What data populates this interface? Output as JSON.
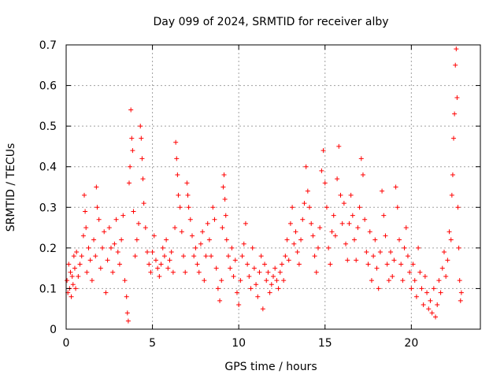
{
  "chart_data": {
    "type": "scatter",
    "title": "Day 099 of 2024, SRMTID for receiver alby",
    "xlabel": "GPS time / hours",
    "ylabel": "SRMTID / TECUs",
    "xlim": [
      0,
      24
    ],
    "ylim": [
      0,
      0.7
    ],
    "xticks": [
      0,
      5,
      10,
      15,
      20
    ],
    "xtick_labels": [
      "0",
      "5",
      "10",
      "15",
      "20"
    ],
    "yticks": [
      0,
      0.1,
      0.2,
      0.3,
      0.4,
      0.5,
      0.6,
      0.7
    ],
    "ytick_labels": [
      "0",
      "0.1",
      "0.2",
      "0.3",
      "0.4",
      "0.5",
      "0.6",
      "0.7"
    ],
    "grid": true,
    "marker": "+",
    "marker_color": "#ff0000",
    "series": [
      {
        "name": "SRMTID",
        "points": [
          [
            0.05,
            0.12
          ],
          [
            0.1,
            0.09
          ],
          [
            0.15,
            0.16
          ],
          [
            0.2,
            0.1
          ],
          [
            0.25,
            0.14
          ],
          [
            0.3,
            0.08
          ],
          [
            0.35,
            0.13
          ],
          [
            0.4,
            0.11
          ],
          [
            0.45,
            0.18
          ],
          [
            0.5,
            0.15
          ],
          [
            0.55,
            0.1
          ],
          [
            0.6,
            0.19
          ],
          [
            0.7,
            0.13
          ],
          [
            0.8,
            0.16
          ],
          [
            0.9,
            0.18
          ],
          [
            1.0,
            0.23
          ],
          [
            1.05,
            0.33
          ],
          [
            1.1,
            0.29
          ],
          [
            1.15,
            0.25
          ],
          [
            1.2,
            0.14
          ],
          [
            1.3,
            0.2
          ],
          [
            1.4,
            0.17
          ],
          [
            1.5,
            0.12
          ],
          [
            1.6,
            0.22
          ],
          [
            1.7,
            0.18
          ],
          [
            1.75,
            0.35
          ],
          [
            1.8,
            0.3
          ],
          [
            1.9,
            0.27
          ],
          [
            2.0,
            0.15
          ],
          [
            2.1,
            0.2
          ],
          [
            2.2,
            0.24
          ],
          [
            2.3,
            0.09
          ],
          [
            2.4,
            0.17
          ],
          [
            2.5,
            0.25
          ],
          [
            2.6,
            0.2
          ],
          [
            2.7,
            0.14
          ],
          [
            2.8,
            0.21
          ],
          [
            2.9,
            0.27
          ],
          [
            3.0,
            0.19
          ],
          [
            3.1,
            0.16
          ],
          [
            3.2,
            0.22
          ],
          [
            3.3,
            0.28
          ],
          [
            3.4,
            0.12
          ],
          [
            3.5,
            0.08
          ],
          [
            3.55,
            0.04
          ],
          [
            3.6,
            0.02
          ],
          [
            3.65,
            0.36
          ],
          [
            3.7,
            0.4
          ],
          [
            3.75,
            0.54
          ],
          [
            3.8,
            0.47
          ],
          [
            3.85,
            0.44
          ],
          [
            3.9,
            0.29
          ],
          [
            4.0,
            0.18
          ],
          [
            4.1,
            0.22
          ],
          [
            4.2,
            0.26
          ],
          [
            4.3,
            0.5
          ],
          [
            4.35,
            0.47
          ],
          [
            4.4,
            0.42
          ],
          [
            4.45,
            0.37
          ],
          [
            4.5,
            0.31
          ],
          [
            4.6,
            0.25
          ],
          [
            4.7,
            0.19
          ],
          [
            4.8,
            0.16
          ],
          [
            4.9,
            0.14
          ],
          [
            5.0,
            0.19
          ],
          [
            5.1,
            0.23
          ],
          [
            5.2,
            0.17
          ],
          [
            5.3,
            0.15
          ],
          [
            5.4,
            0.13
          ],
          [
            5.5,
            0.16
          ],
          [
            5.6,
            0.2
          ],
          [
            5.7,
            0.18
          ],
          [
            5.8,
            0.22
          ],
          [
            5.9,
            0.15
          ],
          [
            6.0,
            0.17
          ],
          [
            6.1,
            0.19
          ],
          [
            6.2,
            0.14
          ],
          [
            6.3,
            0.25
          ],
          [
            6.35,
            0.46
          ],
          [
            6.4,
            0.42
          ],
          [
            6.45,
            0.38
          ],
          [
            6.5,
            0.33
          ],
          [
            6.6,
            0.3
          ],
          [
            6.7,
            0.24
          ],
          [
            6.8,
            0.18
          ],
          [
            6.9,
            0.14
          ],
          [
            7.0,
            0.36
          ],
          [
            7.05,
            0.33
          ],
          [
            7.1,
            0.3
          ],
          [
            7.2,
            0.27
          ],
          [
            7.3,
            0.23
          ],
          [
            7.4,
            0.18
          ],
          [
            7.5,
            0.2
          ],
          [
            7.6,
            0.16
          ],
          [
            7.7,
            0.14
          ],
          [
            7.8,
            0.21
          ],
          [
            7.9,
            0.24
          ],
          [
            8.0,
            0.12
          ],
          [
            8.1,
            0.18
          ],
          [
            8.2,
            0.26
          ],
          [
            8.3,
            0.22
          ],
          [
            8.4,
            0.18
          ],
          [
            8.5,
            0.3
          ],
          [
            8.6,
            0.27
          ],
          [
            8.7,
            0.15
          ],
          [
            8.8,
            0.1
          ],
          [
            8.9,
            0.07
          ],
          [
            9.0,
            0.12
          ],
          [
            9.05,
            0.25
          ],
          [
            9.1,
            0.35
          ],
          [
            9.15,
            0.38
          ],
          [
            9.2,
            0.32
          ],
          [
            9.25,
            0.28
          ],
          [
            9.3,
            0.22
          ],
          [
            9.4,
            0.18
          ],
          [
            9.5,
            0.15
          ],
          [
            9.6,
            0.2
          ],
          [
            9.7,
            0.13
          ],
          [
            9.8,
            0.17
          ],
          [
            9.9,
            0.09
          ],
          [
            10.0,
            0.06
          ],
          [
            10.1,
            0.12
          ],
          [
            10.2,
            0.18
          ],
          [
            10.3,
            0.21
          ],
          [
            10.4,
            0.26
          ],
          [
            10.5,
            0.16
          ],
          [
            10.6,
            0.13
          ],
          [
            10.7,
            0.1
          ],
          [
            10.8,
            0.2
          ],
          [
            10.9,
            0.15
          ],
          [
            11.0,
            0.11
          ],
          [
            11.1,
            0.08
          ],
          [
            11.2,
            0.14
          ],
          [
            11.3,
            0.18
          ],
          [
            11.4,
            0.05
          ],
          [
            11.5,
            0.16
          ],
          [
            11.6,
            0.12
          ],
          [
            11.7,
            0.14
          ],
          [
            11.8,
            0.09
          ],
          [
            11.9,
            0.11
          ],
          [
            12.0,
            0.13
          ],
          [
            12.1,
            0.15
          ],
          [
            12.2,
            0.12
          ],
          [
            12.3,
            0.1
          ],
          [
            12.4,
            0.14
          ],
          [
            12.5,
            0.16
          ],
          [
            12.6,
            0.12
          ],
          [
            12.7,
            0.18
          ],
          [
            12.8,
            0.22
          ],
          [
            12.9,
            0.17
          ],
          [
            13.0,
            0.26
          ],
          [
            13.1,
            0.3
          ],
          [
            13.2,
            0.21
          ],
          [
            13.3,
            0.24
          ],
          [
            13.4,
            0.19
          ],
          [
            13.5,
            0.16
          ],
          [
            13.6,
            0.22
          ],
          [
            13.7,
            0.27
          ],
          [
            13.8,
            0.31
          ],
          [
            13.9,
            0.4
          ],
          [
            14.0,
            0.34
          ],
          [
            14.1,
            0.3
          ],
          [
            14.2,
            0.26
          ],
          [
            14.3,
            0.23
          ],
          [
            14.4,
            0.18
          ],
          [
            14.5,
            0.14
          ],
          [
            14.6,
            0.2
          ],
          [
            14.7,
            0.25
          ],
          [
            14.8,
            0.39
          ],
          [
            14.9,
            0.44
          ],
          [
            15.0,
            0.36
          ],
          [
            15.1,
            0.3
          ],
          [
            15.2,
            0.2
          ],
          [
            15.3,
            0.16
          ],
          [
            15.4,
            0.24
          ],
          [
            15.5,
            0.28
          ],
          [
            15.6,
            0.23
          ],
          [
            15.7,
            0.37
          ],
          [
            15.8,
            0.45
          ],
          [
            15.9,
            0.33
          ],
          [
            16.0,
            0.26
          ],
          [
            16.1,
            0.31
          ],
          [
            16.2,
            0.21
          ],
          [
            16.3,
            0.17
          ],
          [
            16.4,
            0.26
          ],
          [
            16.5,
            0.33
          ],
          [
            16.6,
            0.28
          ],
          [
            16.7,
            0.22
          ],
          [
            16.8,
            0.17
          ],
          [
            16.9,
            0.25
          ],
          [
            17.0,
            0.3
          ],
          [
            17.1,
            0.42
          ],
          [
            17.2,
            0.38
          ],
          [
            17.3,
            0.27
          ],
          [
            17.4,
            0.19
          ],
          [
            17.5,
            0.16
          ],
          [
            17.6,
            0.24
          ],
          [
            17.7,
            0.12
          ],
          [
            17.8,
            0.18
          ],
          [
            17.9,
            0.22
          ],
          [
            18.0,
            0.15
          ],
          [
            18.1,
            0.1
          ],
          [
            18.2,
            0.19
          ],
          [
            18.3,
            0.34
          ],
          [
            18.4,
            0.28
          ],
          [
            18.5,
            0.23
          ],
          [
            18.6,
            0.16
          ],
          [
            18.7,
            0.12
          ],
          [
            18.8,
            0.19
          ],
          [
            18.9,
            0.13
          ],
          [
            19.0,
            0.17
          ],
          [
            19.1,
            0.35
          ],
          [
            19.2,
            0.3
          ],
          [
            19.3,
            0.22
          ],
          [
            19.4,
            0.16
          ],
          [
            19.5,
            0.12
          ],
          [
            19.6,
            0.2
          ],
          [
            19.7,
            0.25
          ],
          [
            19.8,
            0.18
          ],
          [
            19.9,
            0.14
          ],
          [
            20.0,
            0.1
          ],
          [
            20.1,
            0.16
          ],
          [
            20.2,
            0.12
          ],
          [
            20.3,
            0.08
          ],
          [
            20.4,
            0.2
          ],
          [
            20.5,
            0.14
          ],
          [
            20.6,
            0.1
          ],
          [
            20.7,
            0.06
          ],
          [
            20.8,
            0.13
          ],
          [
            20.9,
            0.09
          ],
          [
            21.0,
            0.05
          ],
          [
            21.1,
            0.07
          ],
          [
            21.2,
            0.04
          ],
          [
            21.3,
            0.1
          ],
          [
            21.4,
            0.03
          ],
          [
            21.5,
            0.06
          ],
          [
            21.6,
            0.12
          ],
          [
            21.7,
            0.09
          ],
          [
            21.8,
            0.15
          ],
          [
            21.9,
            0.19
          ],
          [
            22.0,
            0.13
          ],
          [
            22.1,
            0.17
          ],
          [
            22.2,
            0.24
          ],
          [
            22.3,
            0.22
          ],
          [
            22.35,
            0.33
          ],
          [
            22.4,
            0.38
          ],
          [
            22.45,
            0.47
          ],
          [
            22.5,
            0.53
          ],
          [
            22.55,
            0.65
          ],
          [
            22.6,
            0.69
          ],
          [
            22.65,
            0.57
          ],
          [
            22.7,
            0.3
          ],
          [
            22.75,
            0.2
          ],
          [
            22.8,
            0.12
          ],
          [
            22.85,
            0.07
          ],
          [
            22.9,
            0.09
          ]
        ]
      }
    ]
  }
}
